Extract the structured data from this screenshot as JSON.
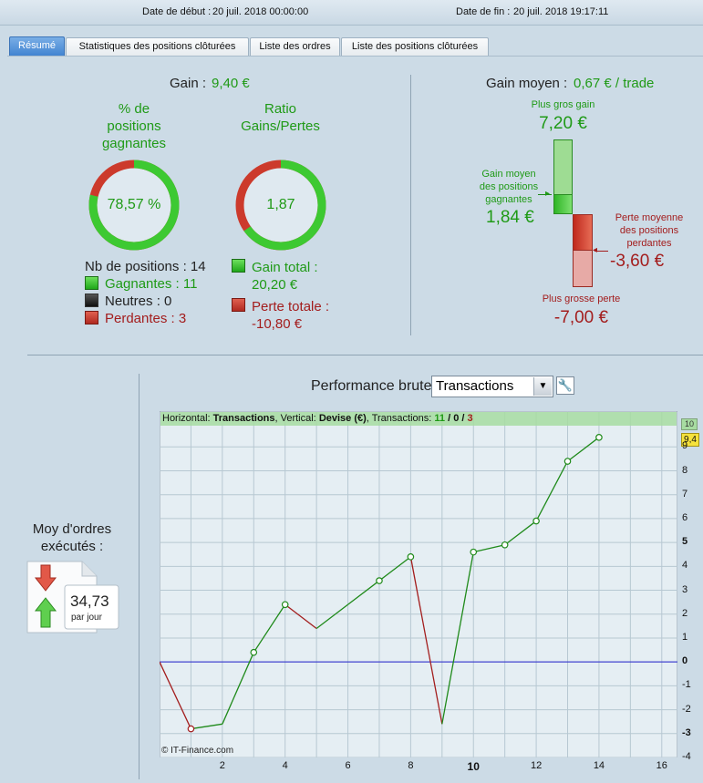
{
  "header": {
    "start_label": "Date de début :",
    "start_value": "20 juil. 2018 00:00:00",
    "end_label": "Date de fin :",
    "end_value": "20 juil. 2018 19:17:11"
  },
  "tabs": [
    "Résumé",
    "Statistiques des positions clôturées",
    "Liste des ordres",
    "Liste des positions clôturées"
  ],
  "summary": {
    "gain_label": "Gain :",
    "gain_value": "9,40 €",
    "pct_title_1": "% de",
    "pct_title_2": "positions",
    "pct_title_3": "gagnantes",
    "pct_value": "78,57 %",
    "pct_fraction": 0.7857,
    "ratio_title_1": "Ratio",
    "ratio_title_2": "Gains/Pertes",
    "ratio_value": "1,87",
    "ratio_green_fraction": 0.6517,
    "nb_positions": "Nb de positions : 14",
    "winners": "Gagnantes : 11",
    "neutral": "Neutres : 0",
    "losers": "Perdantes : 3",
    "total_gain_label": "Gain total :",
    "total_gain_value": "20,20 €",
    "total_loss_label": "Perte totale :",
    "total_loss_value": "-10,80 €"
  },
  "avg": {
    "label": "Gain moyen :",
    "value": "0,67 € / trade",
    "max_gain_label": "Plus gros gain",
    "max_gain_value": "7,20 €",
    "avg_gain_label_1": "Gain moyen",
    "avg_gain_label_2": "des positions",
    "avg_gain_label_3": "gagnantes",
    "avg_gain_value": "1,84 €",
    "avg_loss_label_1": "Perte moyenne",
    "avg_loss_label_2": "des positions",
    "avg_loss_label_3": "perdantes",
    "avg_loss_value": "-3,60 €",
    "max_loss_label": "Plus grosse perte",
    "max_loss_value": "-7,00 €"
  },
  "orders": {
    "title_1": "Moy d'ordres",
    "title_2": "exécutés :",
    "value": "34,73",
    "unit": "par jour"
  },
  "perf": {
    "title": "Performance brute",
    "select_value": "Transactions",
    "chart_header_h": "Horizontal:",
    "chart_header_h_val": "Transactions",
    "chart_header_v": ", Vertical:",
    "chart_header_v_val": "Devise (€)",
    "chart_header_t": ", Transactions:",
    "chart_header_win": "11",
    "chart_header_sep1": "/",
    "chart_header_neu": "0",
    "chart_header_sep2": "/",
    "chart_header_los": "3",
    "copyright": "© IT-Finance.com",
    "last_value_tag": "9,4",
    "top_value_tag": "10"
  },
  "chart_data": {
    "type": "line",
    "x": [
      0,
      1,
      2,
      3,
      4,
      5,
      6,
      7,
      8,
      9,
      10,
      11,
      12,
      13,
      14
    ],
    "y": [
      0,
      -2.8,
      -2.6,
      0.4,
      2.4,
      1.4,
      2.4,
      3.4,
      4.4,
      -2.6,
      4.6,
      4.9,
      5.9,
      8.4,
      9.4
    ],
    "markers": [
      1,
      3,
      4,
      7,
      8,
      10,
      11,
      12,
      13,
      14
    ],
    "loss_segments": [
      [
        0,
        1
      ],
      [
        4,
        5
      ],
      [
        8,
        9
      ]
    ],
    "xlim": [
      0,
      16.5
    ],
    "ylim": [
      -4,
      10.5
    ],
    "xticks": [
      2,
      4,
      6,
      8,
      10,
      12,
      14,
      16
    ],
    "xticks_bold": [
      10
    ],
    "yticks": [
      -4,
      -3,
      -2,
      -1,
      0,
      1,
      2,
      3,
      4,
      5,
      6,
      7,
      8,
      9
    ],
    "yticks_bold": [
      -3,
      0,
      5
    ],
    "colors": {
      "gain": "#1f8a1a",
      "loss": "#a31d1d",
      "zero": "#2222cc",
      "grid": "#b7c8d2"
    }
  }
}
